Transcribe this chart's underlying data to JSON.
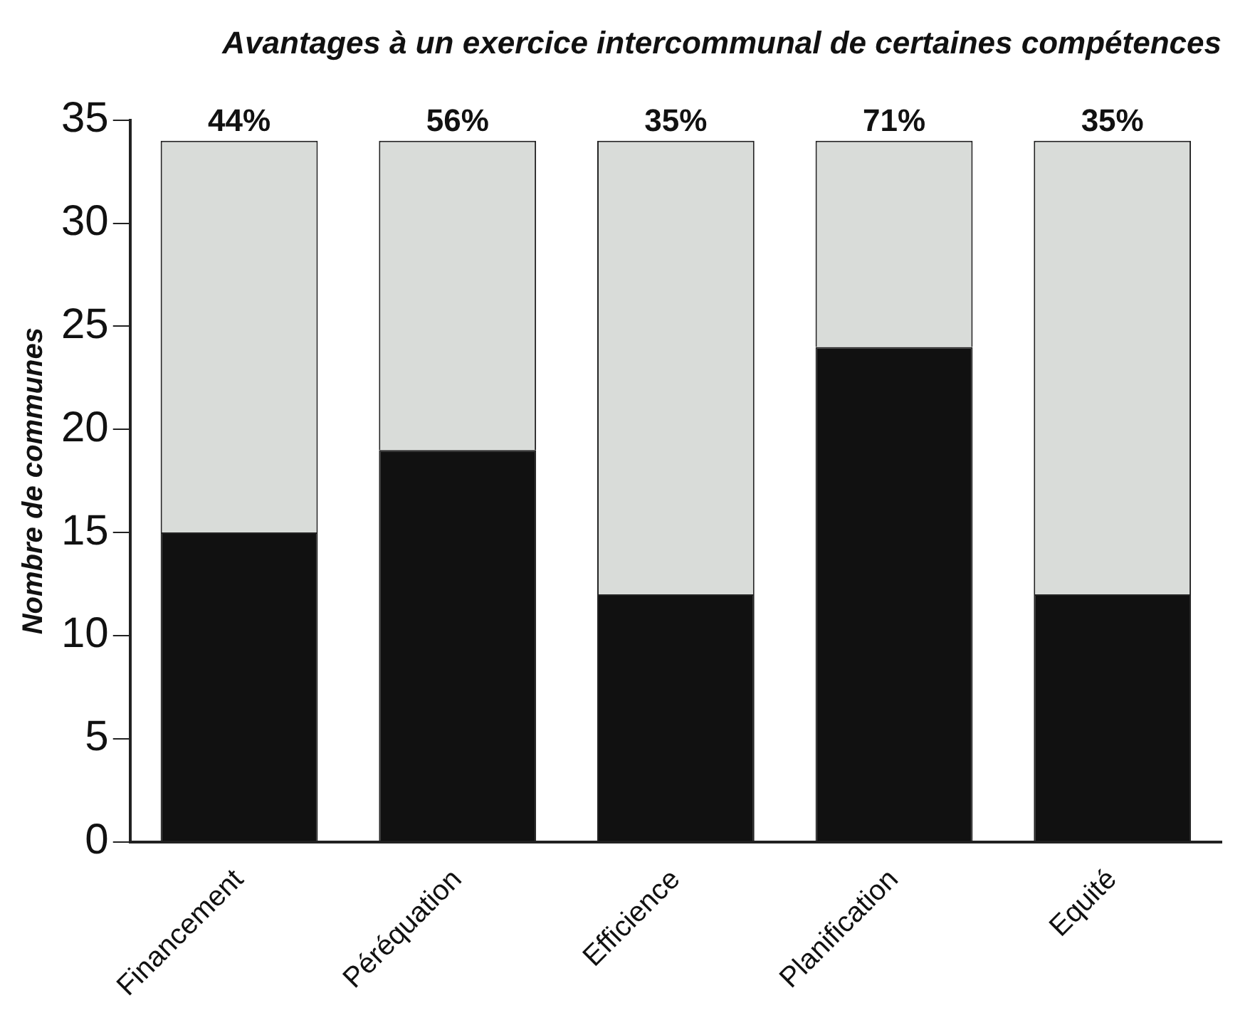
{
  "chart_data": {
    "type": "bar",
    "title": "Avantages à un exercice intercommunal de certaines compétences",
    "ylabel": "Nombre de communes",
    "categories": [
      "Financement",
      "Péréquation",
      "Efficience",
      "Planification",
      "Equité"
    ],
    "series": [
      {
        "color": "#111111",
        "values": [
          15,
          19,
          12,
          24,
          12
        ]
      },
      {
        "color": "#d9dcd9",
        "values": [
          19,
          15,
          22,
          10,
          22
        ]
      }
    ],
    "stacked": true,
    "annotations": [
      {
        "text": "44%",
        "x": "Financement",
        "y": 34
      },
      {
        "text": "56%",
        "x": "Péréquation",
        "y": 34
      },
      {
        "text": "35%",
        "x": "Efficience",
        "y": 34
      },
      {
        "text": "71%",
        "x": "Planification",
        "y": 34
      },
      {
        "text": "35%",
        "x": "Equité",
        "y": 34
      }
    ],
    "ylim": [
      0,
      35
    ],
    "yticks": [
      0,
      5,
      10,
      15,
      20,
      25,
      30,
      35
    ],
    "grid": false,
    "legend": false
  }
}
